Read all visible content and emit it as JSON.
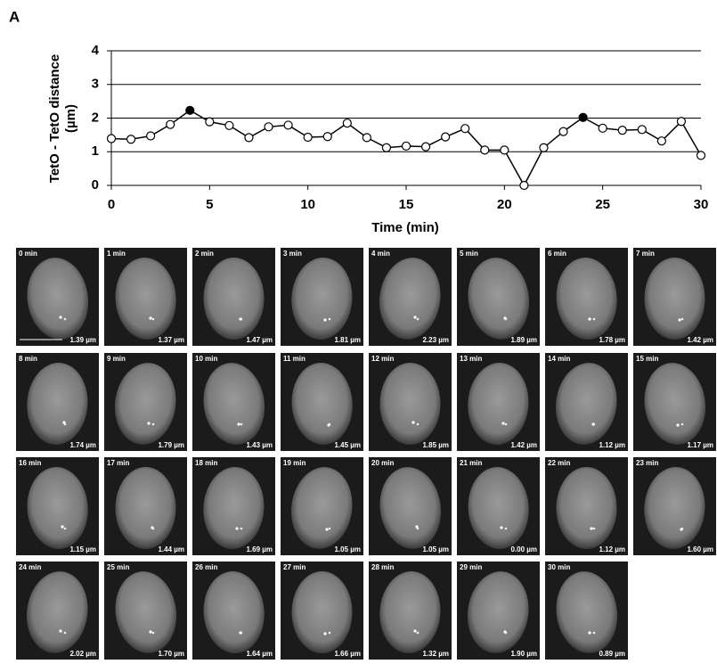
{
  "panel_label": "A",
  "chart_data": {
    "type": "line",
    "y_label": [
      "TetO - TetO distance",
      "(µm)"
    ],
    "x_label": "Time (min)",
    "x": [
      0,
      1,
      2,
      3,
      4,
      5,
      6,
      7,
      8,
      9,
      10,
      11,
      12,
      13,
      14,
      15,
      16,
      17,
      18,
      19,
      20,
      21,
      22,
      23,
      24,
      25,
      26,
      27,
      28,
      29,
      30
    ],
    "values": [
      1.39,
      1.37,
      1.47,
      1.81,
      2.23,
      1.89,
      1.78,
      1.42,
      1.74,
      1.79,
      1.43,
      1.45,
      1.85,
      1.42,
      1.12,
      1.17,
      1.15,
      1.44,
      1.69,
      1.05,
      1.05,
      0.0,
      1.12,
      1.6,
      2.02,
      1.7,
      1.64,
      1.66,
      1.32,
      1.9,
      0.89
    ],
    "filled_x": [
      4,
      24
    ],
    "color": "#000000",
    "xlim": [
      0,
      30
    ],
    "ylim": [
      0,
      4
    ],
    "xticks": [
      0,
      5,
      10,
      15,
      20,
      25,
      30
    ],
    "yticks": [
      0,
      1,
      2,
      3,
      4
    ],
    "grid": true
  },
  "frames": [
    {
      "time": "0 min",
      "distance": "1.39 µm"
    },
    {
      "time": "1 min",
      "distance": "1.37 µm"
    },
    {
      "time": "2 min",
      "distance": "1.47 µm"
    },
    {
      "time": "3 min",
      "distance": "1.81 µm"
    },
    {
      "time": "4 min",
      "distance": "2.23 µm"
    },
    {
      "time": "5 min",
      "distance": "1.89 µm"
    },
    {
      "time": "6 min",
      "distance": "1.78 µm"
    },
    {
      "time": "7 min",
      "distance": "1.42 µm"
    },
    {
      "time": "8 min",
      "distance": "1.74 µm"
    },
    {
      "time": "9 min",
      "distance": "1.79 µm"
    },
    {
      "time": "10 min",
      "distance": "1.43 µm"
    },
    {
      "time": "11 min",
      "distance": "1.45 µm"
    },
    {
      "time": "12 min",
      "distance": "1.85 µm"
    },
    {
      "time": "13 min",
      "distance": "1.42 µm"
    },
    {
      "time": "14 min",
      "distance": "1.12 µm"
    },
    {
      "time": "15 min",
      "distance": "1.17 µm"
    },
    {
      "time": "16 min",
      "distance": "1.15 µm"
    },
    {
      "time": "17 min",
      "distance": "1.44 µm"
    },
    {
      "time": "18 min",
      "distance": "1.69 µm"
    },
    {
      "time": "19 min",
      "distance": "1.05 µm"
    },
    {
      "time": "20 min",
      "distance": "1.05 µm"
    },
    {
      "time": "21 min",
      "distance": "0.00 µm"
    },
    {
      "time": "22 min",
      "distance": "1.12 µm"
    },
    {
      "time": "23 min",
      "distance": "1.60 µm"
    },
    {
      "time": "24 min",
      "distance": "2.02 µm"
    },
    {
      "time": "25 min",
      "distance": "1.70 µm"
    },
    {
      "time": "26 min",
      "distance": "1.64 µm"
    },
    {
      "time": "27 min",
      "distance": "1.66 µm"
    },
    {
      "time": "28 min",
      "distance": "1.32 µm"
    },
    {
      "time": "29 min",
      "distance": "1.90 µm"
    },
    {
      "time": "30 min",
      "distance": "0.89 µm"
    }
  ]
}
